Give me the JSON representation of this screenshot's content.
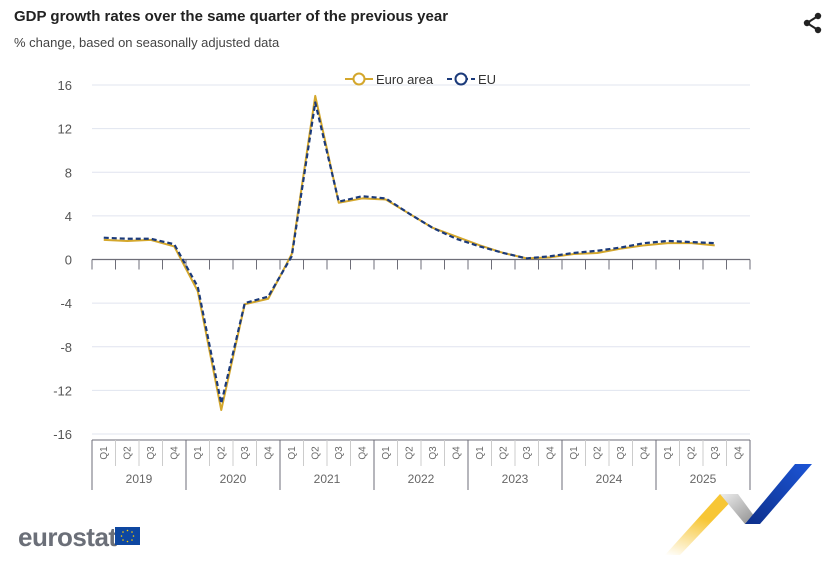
{
  "header": {
    "title": "GDP growth rates over the same quarter of the previous year",
    "subtitle": "% change, based on seasonally adjusted data",
    "share_icon": "share-icon"
  },
  "logo": {
    "text": "eurostat"
  },
  "colors": {
    "euro_area": "#d4a72c",
    "eu": "#1b3a7a",
    "grid": "#e0e4ef",
    "axis": "#6e6e78"
  },
  "chart_data": {
    "type": "line",
    "title": "GDP growth rates over the same quarter of the previous year",
    "ylabel": "% change",
    "xlabel": "",
    "ylim": [
      -16,
      16
    ],
    "yticks": [
      16,
      12,
      8,
      4,
      0,
      -4,
      -8,
      -12,
      -16
    ],
    "ytick_labels": [
      "16",
      "12",
      "8",
      "4",
      "0",
      "-4",
      "-8",
      "-12",
      "-16"
    ],
    "years": [
      "2019",
      "2020",
      "2021",
      "2022",
      "2023",
      "2024",
      "2025"
    ],
    "quarters": [
      "Q1",
      "Q2",
      "Q3",
      "Q4"
    ],
    "legend": {
      "placement": "top-center",
      "entries": [
        "Euro area",
        "EU"
      ]
    },
    "series": [
      {
        "name": "Euro area",
        "values": [
          1.8,
          1.7,
          1.8,
          1.2,
          -2.9,
          -13.8,
          -4.1,
          -3.6,
          0.5,
          15.0,
          5.2,
          5.6,
          5.5,
          4.2,
          2.9,
          2.1,
          1.3,
          0.6,
          0.1,
          0.2,
          0.5,
          0.6,
          1.0,
          1.3,
          1.5,
          1.5,
          1.3,
          null
        ]
      },
      {
        "name": "EU",
        "values": [
          2.0,
          1.9,
          1.9,
          1.4,
          -2.5,
          -13.2,
          -4.0,
          -3.4,
          0.3,
          14.4,
          5.3,
          5.8,
          5.6,
          4.2,
          2.9,
          1.9,
          1.2,
          0.6,
          0.1,
          0.3,
          0.6,
          0.8,
          1.1,
          1.5,
          1.7,
          1.6,
          1.5,
          null
        ]
      }
    ]
  }
}
